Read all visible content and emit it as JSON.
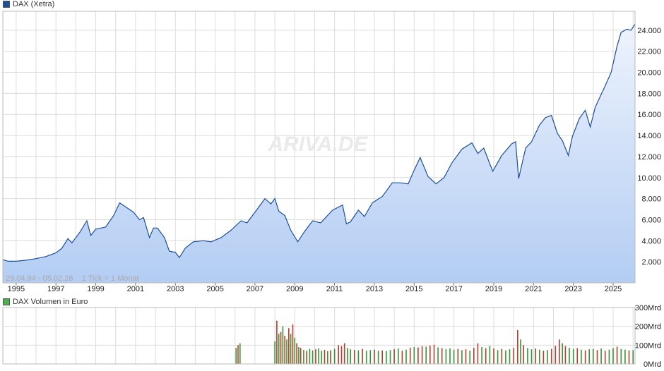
{
  "colors": {
    "price_line": "#1a4fa0",
    "price_fill_top": "#eef3fd",
    "price_fill_bottom": "#b3cdf3",
    "vol_up": "#2f9a2f",
    "vol_down": "#c0392b",
    "grid": "#dcdcdc",
    "watermark": "#eaeaea"
  },
  "price_panel": {
    "legend": "DAX (Xetra)",
    "info": "29.04.94 - 05.02.26    1 Tick = 1 Monat",
    "watermark": "ARIVA.DE"
  },
  "volume_panel": {
    "legend": "DAX Volumen in Euro"
  },
  "chart_data": [
    {
      "type": "line",
      "title": "DAX (Xetra)",
      "x_range": [
        1994.33,
        2026.1
      ],
      "ylim": [
        0,
        25800
      ],
      "x_tick_labels": [
        "1995",
        "1997",
        "1999",
        "2001",
        "2003",
        "2005",
        "2007",
        "2009",
        "2011",
        "2013",
        "2015",
        "2017",
        "2019",
        "2021",
        "2023",
        "2025"
      ],
      "y_tick_labels": [
        "2.000",
        "4.000",
        "6.000",
        "8.000",
        "10.000",
        "12.000",
        "14.000",
        "16.000",
        "18.000",
        "20.000",
        "22.000",
        "24.000"
      ],
      "grid": true,
      "points": [
        [
          1994.33,
          2200
        ],
        [
          1994.6,
          2050
        ],
        [
          1995.0,
          2050
        ],
        [
          1995.5,
          2150
        ],
        [
          1996.0,
          2300
        ],
        [
          1996.5,
          2500
        ],
        [
          1997.0,
          2850
        ],
        [
          1997.3,
          3300
        ],
        [
          1997.6,
          4200
        ],
        [
          1997.8,
          3800
        ],
        [
          1998.2,
          4800
        ],
        [
          1998.55,
          5900
        ],
        [
          1998.75,
          4500
        ],
        [
          1999.0,
          5100
        ],
        [
          1999.5,
          5300
        ],
        [
          1999.9,
          6400
        ],
        [
          2000.2,
          7600
        ],
        [
          2000.6,
          7100
        ],
        [
          2000.9,
          6700
        ],
        [
          2001.2,
          6000
        ],
        [
          2001.4,
          6200
        ],
        [
          2001.7,
          4300
        ],
        [
          2001.9,
          5200
        ],
        [
          2002.1,
          5200
        ],
        [
          2002.45,
          4300
        ],
        [
          2002.7,
          3000
        ],
        [
          2003.0,
          2900
        ],
        [
          2003.2,
          2400
        ],
        [
          2003.5,
          3300
        ],
        [
          2003.9,
          3900
        ],
        [
          2004.4,
          4000
        ],
        [
          2004.8,
          3900
        ],
        [
          2005.3,
          4300
        ],
        [
          2005.8,
          5000
        ],
        [
          2006.3,
          5900
        ],
        [
          2006.6,
          5700
        ],
        [
          2007.0,
          6700
        ],
        [
          2007.5,
          8000
        ],
        [
          2007.8,
          7500
        ],
        [
          2008.0,
          8000
        ],
        [
          2008.2,
          6800
        ],
        [
          2008.5,
          6400
        ],
        [
          2008.8,
          5000
        ],
        [
          2009.15,
          3900
        ],
        [
          2009.5,
          4900
        ],
        [
          2009.9,
          5900
        ],
        [
          2010.3,
          5700
        ],
        [
          2010.9,
          6900
        ],
        [
          2011.4,
          7400
        ],
        [
          2011.6,
          5600
        ],
        [
          2011.8,
          5800
        ],
        [
          2012.2,
          6900
        ],
        [
          2012.5,
          6300
        ],
        [
          2012.9,
          7600
        ],
        [
          2013.4,
          8200
        ],
        [
          2013.9,
          9500
        ],
        [
          2014.3,
          9500
        ],
        [
          2014.7,
          9400
        ],
        [
          2015.0,
          10700
        ],
        [
          2015.3,
          11900
        ],
        [
          2015.7,
          10100
        ],
        [
          2016.1,
          9400
        ],
        [
          2016.5,
          10000
        ],
        [
          2016.9,
          11400
        ],
        [
          2017.4,
          12700
        ],
        [
          2017.9,
          13300
        ],
        [
          2018.2,
          12300
        ],
        [
          2018.5,
          12800
        ],
        [
          2018.8,
          11300
        ],
        [
          2018.95,
          10600
        ],
        [
          2019.4,
          12100
        ],
        [
          2019.9,
          13200
        ],
        [
          2020.1,
          13400
        ],
        [
          2020.25,
          9900
        ],
        [
          2020.6,
          12800
        ],
        [
          2020.9,
          13400
        ],
        [
          2021.3,
          15000
        ],
        [
          2021.6,
          15700
        ],
        [
          2021.9,
          15900
        ],
        [
          2022.2,
          14200
        ],
        [
          2022.45,
          13500
        ],
        [
          2022.75,
          12100
        ],
        [
          2022.95,
          13900
        ],
        [
          2023.3,
          15600
        ],
        [
          2023.6,
          16400
        ],
        [
          2023.85,
          14800
        ],
        [
          2024.1,
          16700
        ],
        [
          2024.5,
          18300
        ],
        [
          2024.9,
          20000
        ],
        [
          2025.2,
          22500
        ],
        [
          2025.4,
          23800
        ],
        [
          2025.7,
          24100
        ],
        [
          2025.9,
          24000
        ],
        [
          2026.1,
          24600
        ]
      ]
    },
    {
      "type": "bar",
      "title": "DAX Volumen in Euro",
      "unit": "Mrd",
      "ylim": [
        0,
        300
      ],
      "y_tick_labels": [
        "300Mrd",
        "200Mrd",
        "100Mrd",
        "0Mrd"
      ],
      "x_range": [
        1994.33,
        2026.1
      ],
      "values": [
        [
          2006.05,
          85,
          "up"
        ],
        [
          2006.15,
          100,
          "down"
        ],
        [
          2006.25,
          110,
          "up"
        ],
        [
          2008.0,
          120,
          "up"
        ],
        [
          2008.1,
          230,
          "down"
        ],
        [
          2008.2,
          160,
          "up"
        ],
        [
          2008.3,
          170,
          "down"
        ],
        [
          2008.4,
          200,
          "up"
        ],
        [
          2008.5,
          150,
          "down"
        ],
        [
          2008.6,
          130,
          "up"
        ],
        [
          2008.7,
          190,
          "down"
        ],
        [
          2008.8,
          160,
          "up"
        ],
        [
          2008.9,
          210,
          "down"
        ],
        [
          2009.0,
          140,
          "up"
        ],
        [
          2009.1,
          110,
          "down"
        ],
        [
          2009.2,
          90,
          "up"
        ],
        [
          2009.3,
          85,
          "down"
        ],
        [
          2009.45,
          75,
          "up"
        ],
        [
          2009.6,
          70,
          "down"
        ],
        [
          2009.75,
          80,
          "up"
        ],
        [
          2009.9,
          72,
          "up"
        ],
        [
          2010.05,
          78,
          "down"
        ],
        [
          2010.2,
          82,
          "up"
        ],
        [
          2010.35,
          70,
          "up"
        ],
        [
          2010.5,
          75,
          "down"
        ],
        [
          2010.65,
          68,
          "up"
        ],
        [
          2010.8,
          72,
          "down"
        ],
        [
          2011.0,
          80,
          "up"
        ],
        [
          2011.2,
          100,
          "down"
        ],
        [
          2011.35,
          95,
          "down"
        ],
        [
          2011.5,
          110,
          "down"
        ],
        [
          2011.65,
          85,
          "up"
        ],
        [
          2011.8,
          78,
          "up"
        ],
        [
          2012.0,
          75,
          "down"
        ],
        [
          2012.2,
          72,
          "up"
        ],
        [
          2012.4,
          80,
          "down"
        ],
        [
          2012.6,
          70,
          "up"
        ],
        [
          2012.8,
          74,
          "up"
        ],
        [
          2013.0,
          76,
          "down"
        ],
        [
          2013.2,
          70,
          "up"
        ],
        [
          2013.4,
          72,
          "down"
        ],
        [
          2013.6,
          68,
          "up"
        ],
        [
          2013.8,
          74,
          "up"
        ],
        [
          2014.0,
          78,
          "down"
        ],
        [
          2014.2,
          82,
          "up"
        ],
        [
          2014.4,
          70,
          "down"
        ],
        [
          2014.6,
          76,
          "up"
        ],
        [
          2014.8,
          86,
          "down"
        ],
        [
          2015.0,
          90,
          "up"
        ],
        [
          2015.2,
          88,
          "down"
        ],
        [
          2015.4,
          95,
          "down"
        ],
        [
          2015.6,
          92,
          "up"
        ],
        [
          2015.8,
          98,
          "down"
        ],
        [
          2016.0,
          102,
          "down"
        ],
        [
          2016.2,
          88,
          "up"
        ],
        [
          2016.4,
          84,
          "down"
        ],
        [
          2016.6,
          78,
          "up"
        ],
        [
          2016.8,
          82,
          "up"
        ],
        [
          2017.0,
          76,
          "up"
        ],
        [
          2017.2,
          80,
          "down"
        ],
        [
          2017.4,
          74,
          "up"
        ],
        [
          2017.6,
          78,
          "down"
        ],
        [
          2017.8,
          70,
          "up"
        ],
        [
          2018.0,
          86,
          "down"
        ],
        [
          2018.2,
          110,
          "down"
        ],
        [
          2018.4,
          90,
          "up"
        ],
        [
          2018.6,
          84,
          "down"
        ],
        [
          2018.8,
          96,
          "up"
        ],
        [
          2019.0,
          82,
          "down"
        ],
        [
          2019.2,
          74,
          "up"
        ],
        [
          2019.4,
          80,
          "down"
        ],
        [
          2019.6,
          72,
          "up"
        ],
        [
          2019.8,
          78,
          "up"
        ],
        [
          2020.0,
          86,
          "down"
        ],
        [
          2020.2,
          180,
          "down"
        ],
        [
          2020.35,
          130,
          "up"
        ],
        [
          2020.5,
          100,
          "down"
        ],
        [
          2020.7,
          84,
          "up"
        ],
        [
          2020.9,
          78,
          "up"
        ],
        [
          2021.1,
          82,
          "down"
        ],
        [
          2021.3,
          76,
          "up"
        ],
        [
          2021.5,
          70,
          "down"
        ],
        [
          2021.7,
          74,
          "up"
        ],
        [
          2021.9,
          80,
          "down"
        ],
        [
          2022.1,
          96,
          "down"
        ],
        [
          2022.3,
          130,
          "down"
        ],
        [
          2022.45,
          110,
          "up"
        ],
        [
          2022.6,
          95,
          "down"
        ],
        [
          2022.8,
          86,
          "up"
        ],
        [
          2023.0,
          80,
          "up"
        ],
        [
          2023.2,
          84,
          "down"
        ],
        [
          2023.4,
          76,
          "up"
        ],
        [
          2023.6,
          72,
          "down"
        ],
        [
          2023.8,
          78,
          "up"
        ],
        [
          2024.0,
          80,
          "up"
        ],
        [
          2024.2,
          74,
          "down"
        ],
        [
          2024.4,
          82,
          "up"
        ],
        [
          2024.6,
          70,
          "down"
        ],
        [
          2024.8,
          76,
          "up"
        ],
        [
          2025.0,
          84,
          "up"
        ],
        [
          2025.2,
          92,
          "down"
        ],
        [
          2025.4,
          80,
          "up"
        ],
        [
          2025.6,
          76,
          "up"
        ],
        [
          2025.8,
          72,
          "down"
        ],
        [
          2026.0,
          74,
          "up"
        ]
      ]
    }
  ]
}
